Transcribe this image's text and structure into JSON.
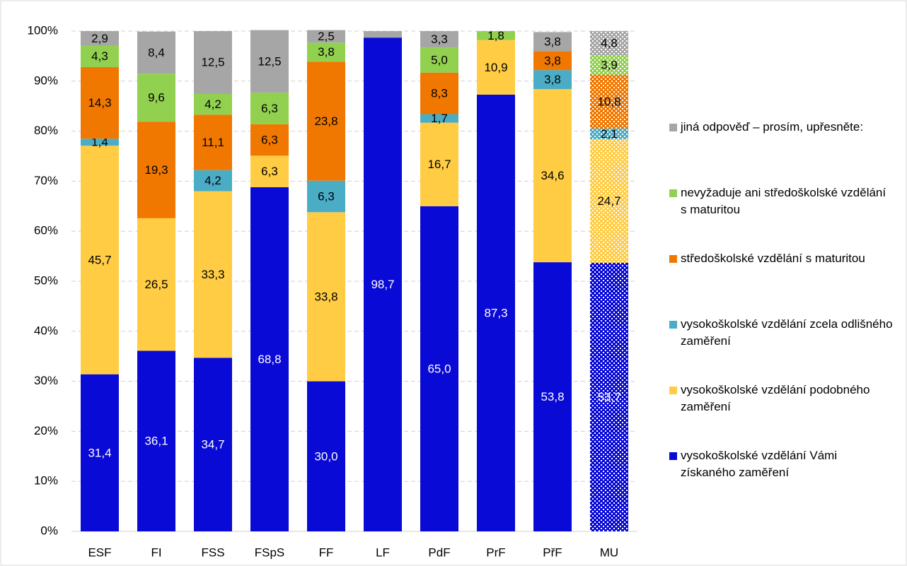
{
  "chart_data": {
    "type": "stacked_bar",
    "categories": [
      "ESF",
      "FI",
      "FSS",
      "FSpS",
      "FF",
      "LF",
      "PdF",
      "PrF",
      "PřF",
      "MU"
    ],
    "series": [
      {
        "name": "vysokoškolské vzdělání Vámi získaného zaměření",
        "color": "#0a0ad6",
        "label_color": "#ffffff",
        "values": [
          31.4,
          36.1,
          34.7,
          68.8,
          30.0,
          98.7,
          65.0,
          87.3,
          53.8,
          53.7
        ],
        "value_labels": [
          "31,4",
          "36,1",
          "34,7",
          "68,8",
          "30,0",
          "98,7",
          "65,0",
          "87,3",
          "53,8",
          "53,7"
        ]
      },
      {
        "name": "vysokoškolské vzdělání podobného zaměření",
        "color": "#ffcc44",
        "label_color": "#000000",
        "values": [
          45.7,
          26.5,
          33.3,
          6.3,
          33.8,
          null,
          16.7,
          10.9,
          34.6,
          24.7
        ],
        "value_labels": [
          "45,7",
          "26,5",
          "33,3",
          "6,3",
          "33,8",
          null,
          "16,7",
          "10,9",
          "34,6",
          "24,7"
        ]
      },
      {
        "name": "vysokoškolské vzdělání zcela odlišného zaměření",
        "color": "#4bacc6",
        "label_color": "#000000",
        "values": [
          1.4,
          null,
          4.2,
          null,
          6.3,
          null,
          1.7,
          null,
          3.8,
          2.1
        ],
        "value_labels": [
          "1,4",
          null,
          "4,2",
          null,
          "6,3",
          null,
          "1,7",
          null,
          "3,8",
          "2,1"
        ]
      },
      {
        "name": "středoškolské vzdělání s maturitou",
        "color": "#f07800",
        "label_color": "#000000",
        "values": [
          14.3,
          19.3,
          11.1,
          6.3,
          23.8,
          null,
          8.3,
          null,
          3.8,
          10.8
        ],
        "value_labels": [
          "14,3",
          "19,3",
          "11,1",
          "6,3",
          "23,8",
          null,
          "8,3",
          null,
          "3,8",
          "10,8"
        ]
      },
      {
        "name": "nevyžaduje ani středoškolské vzdělání s maturitou",
        "color": "#92d050",
        "label_color": "#000000",
        "values": [
          4.3,
          9.6,
          4.2,
          6.3,
          3.8,
          null,
          5.0,
          1.8,
          null,
          3.9
        ],
        "value_labels": [
          "4,3",
          "9,6",
          "4,2",
          "6,3",
          "3,8",
          null,
          "5,0",
          "1,8",
          null,
          "3,9"
        ]
      },
      {
        "name": "jiná odpověď – prosím, upřesněte:",
        "color": "#a6a6a6",
        "label_color": "#000000",
        "values": [
          2.9,
          8.4,
          12.5,
          12.5,
          2.5,
          1.3,
          3.3,
          null,
          3.8,
          4.8
        ],
        "value_labels": [
          "2,9",
          "8,4",
          "12,5",
          "12,5",
          "2,5",
          null,
          "3,3",
          null,
          "3,8",
          "4,8"
        ]
      }
    ],
    "pattern_categories": [
      "MU"
    ],
    "ylim": [
      0,
      100
    ],
    "yticks": [
      {
        "value": 0,
        "label": "0%"
      },
      {
        "value": 10,
        "label": "10%"
      },
      {
        "value": 20,
        "label": "20%"
      },
      {
        "value": 30,
        "label": "30%"
      },
      {
        "value": 40,
        "label": "40%"
      },
      {
        "value": 50,
        "label": "50%"
      },
      {
        "value": 60,
        "label": "60%"
      },
      {
        "value": 70,
        "label": "70%"
      },
      {
        "value": 80,
        "label": "80%"
      },
      {
        "value": 90,
        "label": "90%"
      },
      {
        "value": 100,
        "label": "100%"
      }
    ],
    "grid": true,
    "legend": "right"
  }
}
